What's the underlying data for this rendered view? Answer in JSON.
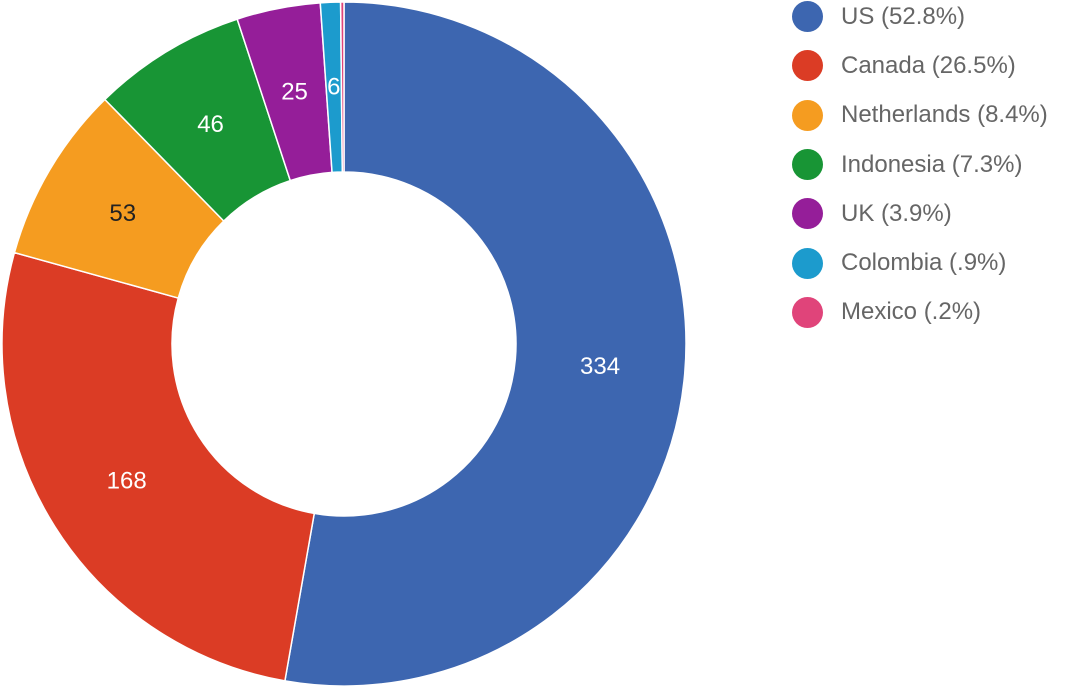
{
  "chart_data": {
    "type": "pie",
    "donut": true,
    "title": "",
    "legend_position": "right",
    "slices": [
      {
        "label": "US",
        "legend": "US (52.8%)",
        "value": 334,
        "value_label": "334",
        "color": "#3D66B0",
        "label_color": "#FFFFFF"
      },
      {
        "label": "Canada",
        "legend": "Canada (26.5%)",
        "value": 168,
        "value_label": "168",
        "color": "#DB3C25",
        "label_color": "#FFFFFF"
      },
      {
        "label": "Netherlands",
        "legend": "Netherlands (8.4%)",
        "value": 53,
        "value_label": "53",
        "color": "#F59C20",
        "label_color": "#222222"
      },
      {
        "label": "Indonesia",
        "legend": "Indonesia (7.3%)",
        "value": 46,
        "value_label": "46",
        "color": "#189535",
        "label_color": "#FFFFFF"
      },
      {
        "label": "UK",
        "legend": "UK (3.9%)",
        "value": 25,
        "value_label": "25",
        "color": "#951E99",
        "label_color": "#FFFFFF"
      },
      {
        "label": "Colombia",
        "legend": "Colombia (.9%)",
        "value": 6,
        "value_label": "6",
        "color": "#1C9BCD",
        "label_color": "#FFFFFF"
      },
      {
        "label": "Mexico",
        "legend": "Mexico (.2%)",
        "value": 1,
        "value_label": "",
        "color": "#E0447A",
        "label_color": "#FFFFFF"
      }
    ]
  }
}
